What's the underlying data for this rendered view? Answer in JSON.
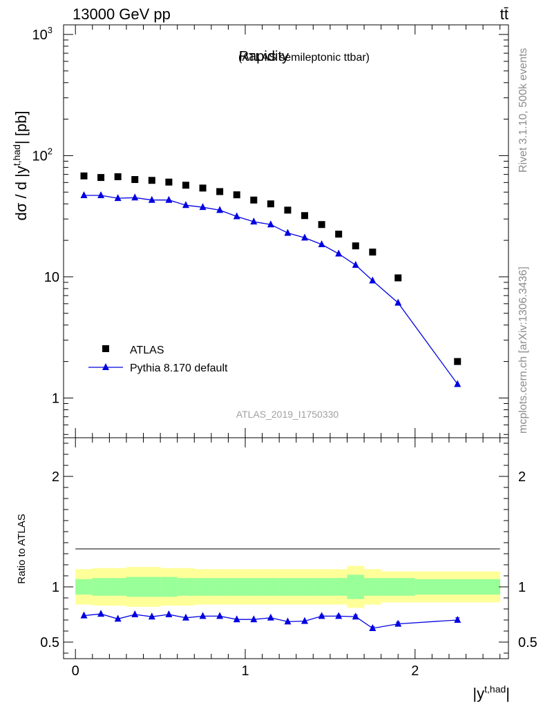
{
  "header": {
    "energy_label": "13000 GeV pp",
    "process_label": "tt̄"
  },
  "side": {
    "rivet_label": "Rivet 3.1.10,  500k events",
    "mcplots_label": "mcplots.cern.ch [arXiv:1306.3436]"
  },
  "colors": {
    "atlas": "#000000",
    "pythia": "#0000e0",
    "band_inner": "#99ff99",
    "band_outer": "#ffff99"
  },
  "chart_data": [
    {
      "type": "scatter",
      "panel": "main",
      "title": "Rapidity",
      "subtitle": "(ATLAS semileptonic ttbar)",
      "analysis_id": "ATLAS_2019_I1750330",
      "ylabel": "dσ / d |y^{t,had}| [pb]",
      "ylabel_parts": {
        "pre": "dσ / d |y",
        "sup": "t,had",
        "post": "| [pb]"
      },
      "xlabel": "",
      "yscale": "log",
      "xlim": [
        -0.07,
        2.55
      ],
      "ylim": [
        0.47,
        1200
      ],
      "y_ticks": [
        {
          "value": 1,
          "label": "1"
        },
        {
          "value": 10,
          "label": "10"
        },
        {
          "value": 100,
          "label": "10",
          "exp": "2"
        },
        {
          "value": 1000,
          "label": "10",
          "exp": "3"
        }
      ],
      "legend": {
        "position": "bottom-left"
      },
      "series": [
        {
          "name": "ATLAS",
          "marker": "square",
          "x": [
            0.05,
            0.15,
            0.25,
            0.35,
            0.45,
            0.55,
            0.65,
            0.75,
            0.85,
            0.95,
            1.05,
            1.15,
            1.25,
            1.35,
            1.45,
            1.55,
            1.65,
            1.75,
            1.9,
            2.25
          ],
          "values": [
            68,
            66,
            67,
            63.5,
            62.5,
            60.5,
            57,
            54,
            50.5,
            47.5,
            43,
            40,
            35.5,
            32,
            27,
            22.5,
            18,
            16,
            9.8,
            2.0
          ]
        },
        {
          "name": "Pythia 8.170 default",
          "marker": "triangle",
          "x": [
            0.05,
            0.15,
            0.25,
            0.35,
            0.45,
            0.55,
            0.65,
            0.75,
            0.85,
            0.95,
            1.05,
            1.15,
            1.25,
            1.35,
            1.45,
            1.55,
            1.65,
            1.75,
            1.9,
            2.25
          ],
          "values": [
            47,
            47,
            44.5,
            45,
            43,
            43,
            39,
            37.5,
            35.5,
            31.5,
            28.5,
            27,
            23,
            21,
            18.5,
            15.5,
            12.5,
            9.3,
            6.1,
            1.3
          ]
        }
      ]
    },
    {
      "type": "line",
      "panel": "ratio",
      "ylabel": "Ratio to ATLAS",
      "xlabel": "|y^{t,had}|",
      "xlabel_parts": {
        "pre": "|y",
        "sup": "t,had",
        "post": "|"
      },
      "xlim": [
        -0.07,
        2.55
      ],
      "ylim": [
        0.35,
        2.35
      ],
      "x_ticks": [
        {
          "value": 0,
          "label": "0"
        },
        {
          "value": 1,
          "label": "1"
        },
        {
          "value": 2,
          "label": "2"
        }
      ],
      "y_ticks": [
        {
          "value": 0.5,
          "label": "0.5"
        },
        {
          "value": 1,
          "label": "1"
        },
        {
          "value": 2,
          "label": "2"
        }
      ],
      "band_edges": [
        0,
        0.1,
        0.2,
        0.3,
        0.4,
        0.5,
        0.6,
        0.7,
        0.8,
        0.9,
        1.0,
        1.1,
        1.2,
        1.3,
        1.4,
        1.5,
        1.6,
        1.7,
        1.8,
        2.0,
        2.5
      ],
      "band_inner_lo": [
        0.93,
        0.92,
        0.92,
        0.91,
        0.91,
        0.91,
        0.92,
        0.92,
        0.92,
        0.92,
        0.92,
        0.92,
        0.92,
        0.92,
        0.92,
        0.92,
        0.89,
        0.92,
        0.92,
        0.93
      ],
      "band_inner_hi": [
        1.07,
        1.08,
        1.08,
        1.09,
        1.09,
        1.09,
        1.08,
        1.08,
        1.08,
        1.08,
        1.08,
        1.08,
        1.08,
        1.08,
        1.08,
        1.08,
        1.11,
        1.08,
        1.08,
        1.07
      ],
      "band_outer_lo": [
        0.84,
        0.83,
        0.83,
        0.82,
        0.82,
        0.83,
        0.83,
        0.84,
        0.84,
        0.84,
        0.84,
        0.84,
        0.84,
        0.84,
        0.84,
        0.84,
        0.81,
        0.84,
        0.86,
        0.86
      ],
      "band_outer_hi": [
        1.16,
        1.17,
        1.17,
        1.18,
        1.18,
        1.17,
        1.17,
        1.16,
        1.16,
        1.16,
        1.16,
        1.16,
        1.16,
        1.16,
        1.16,
        1.16,
        1.19,
        1.16,
        1.14,
        1.14
      ],
      "series": [
        {
          "name": "Pythia 8.170 default",
          "x": [
            0.05,
            0.15,
            0.25,
            0.35,
            0.45,
            0.55,
            0.65,
            0.75,
            0.85,
            0.95,
            1.05,
            1.15,
            1.25,
            1.35,
            1.45,
            1.55,
            1.65,
            1.75,
            1.9,
            2.25
          ],
          "values": [
            0.74,
            0.755,
            0.71,
            0.75,
            0.73,
            0.75,
            0.72,
            0.735,
            0.735,
            0.705,
            0.705,
            0.72,
            0.685,
            0.69,
            0.735,
            0.735,
            0.73,
            0.625,
            0.665,
            0.7
          ],
          "errors": [
            0,
            0,
            0,
            0,
            0,
            0,
            0,
            0,
            0,
            0,
            0,
            0,
            0,
            0,
            0.01,
            0.01,
            0.015,
            0.015,
            0.015,
            0.02
          ]
        }
      ]
    }
  ]
}
